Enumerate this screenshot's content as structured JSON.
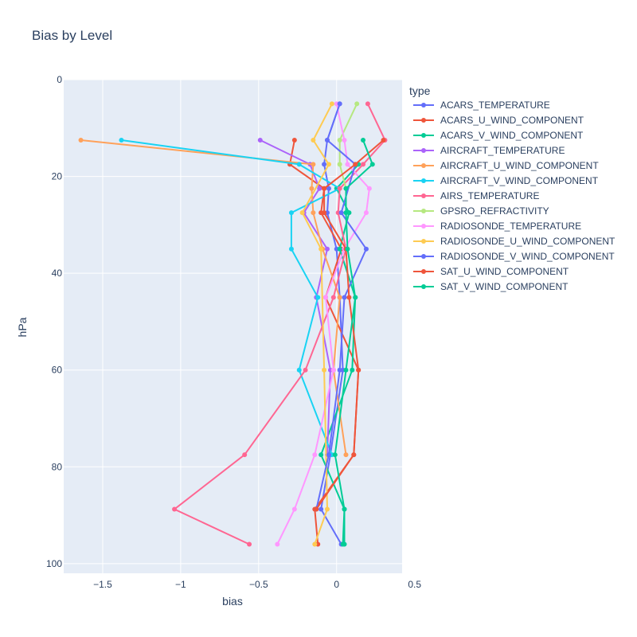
{
  "chart_data": {
    "type": "scatter",
    "mode": "lines+markers",
    "title": "Bias by Level",
    "xlabel": "bias",
    "ylabel": "hPa",
    "xlim": [
      -1.75,
      0.42
    ],
    "ylim": [
      102,
      0
    ],
    "y_reversed": true,
    "grid": true,
    "x_ticks": [
      -1.5,
      -1,
      -0.5,
      0,
      0.5
    ],
    "x_tick_labels": [
      "−1.5",
      "−1",
      "−0.5",
      "0",
      "0.5"
    ],
    "y_ticks": [
      0,
      20,
      40,
      60,
      80,
      100
    ],
    "y_tick_labels": [
      "0",
      "20",
      "40",
      "60",
      "80",
      "100"
    ],
    "legend": {
      "title": "type",
      "placement": "right"
    },
    "series": [
      {
        "name": "ACARS_TEMPERATURE",
        "color": "#636efa",
        "points": [
          [
            0.02,
            5
          ],
          [
            -0.06,
            12.5
          ],
          [
            -0.08,
            17.5
          ],
          [
            -0.05,
            22.5
          ],
          [
            -0.06,
            27.5
          ],
          [
            0.0,
            35
          ],
          [
            0.02,
            45
          ],
          [
            0.04,
            60
          ],
          [
            -0.04,
            77.5
          ],
          [
            -0.1,
            88.75
          ],
          [
            0.03,
            96
          ]
        ]
      },
      {
        "name": "ACARS_U_WIND_COMPONENT",
        "color": "#EF553B",
        "points": [
          [
            -0.27,
            12.5
          ],
          [
            -0.3,
            17.5
          ],
          [
            -0.08,
            22.5
          ],
          [
            -0.1,
            27.5
          ],
          [
            0.03,
            35
          ],
          [
            -0.07,
            45
          ],
          [
            0.14,
            60
          ],
          [
            0.11,
            77.5
          ],
          [
            -0.14,
            88.75
          ],
          [
            -0.12,
            96
          ]
        ]
      },
      {
        "name": "ACARS_V_WIND_COMPONENT",
        "color": "#00cc96",
        "points": [
          [
            0.14,
            17.5
          ],
          [
            0.0,
            22.5
          ],
          [
            0.08,
            27.5
          ],
          [
            0.02,
            35
          ],
          [
            0.12,
            45
          ],
          [
            0.1,
            60
          ],
          [
            -0.1,
            77.5
          ],
          [
            0.05,
            88.75
          ],
          [
            0.04,
            96
          ]
        ]
      },
      {
        "name": "AIRCRAFT_TEMPERATURE",
        "color": "#ab63fa",
        "points": [
          [
            -0.49,
            12.5
          ],
          [
            -0.17,
            17.5
          ],
          [
            -0.11,
            22.5
          ],
          [
            -0.21,
            27.5
          ],
          [
            -0.06,
            35
          ],
          [
            -0.13,
            45
          ],
          [
            -0.04,
            60
          ],
          [
            -0.06,
            77.5
          ]
        ]
      },
      {
        "name": "AIRCRAFT_U_WIND_COMPONENT",
        "color": "#FFA15A",
        "points": [
          [
            -1.64,
            12.5
          ],
          [
            -0.15,
            17.5
          ],
          [
            -0.16,
            22.5
          ],
          [
            -0.15,
            27.5
          ],
          [
            -0.09,
            35
          ],
          [
            0.02,
            45
          ],
          [
            -0.02,
            60
          ],
          [
            0.06,
            77.5
          ]
        ]
      },
      {
        "name": "AIRCRAFT_V_WIND_COMPONENT",
        "color": "#19d3f3",
        "points": [
          [
            -1.38,
            12.5
          ],
          [
            -0.24,
            17.5
          ],
          [
            0.02,
            22.5
          ],
          [
            -0.29,
            27.5
          ],
          [
            -0.29,
            35
          ],
          [
            -0.12,
            45
          ],
          [
            -0.24,
            60
          ],
          [
            -0.03,
            77.5
          ]
        ]
      },
      {
        "name": "AIRS_TEMPERATURE",
        "color": "#FF6692",
        "points": [
          [
            0.2,
            5
          ],
          [
            0.31,
            12.5
          ],
          [
            0.17,
            17.5
          ],
          [
            0.02,
            22.5
          ],
          [
            0.01,
            27.5
          ],
          [
            0.06,
            35
          ],
          [
            -0.02,
            45
          ],
          [
            -0.2,
            60
          ],
          [
            -0.59,
            77.5
          ],
          [
            -1.04,
            88.75
          ],
          [
            -0.56,
            96
          ]
        ]
      },
      {
        "name": "GPSRO_REFRACTIVITY",
        "color": "#B6E880",
        "points": [
          [
            0.13,
            5
          ],
          [
            0.02,
            12.5
          ],
          [
            0.02,
            17.5
          ],
          [
            0.06,
            22.5
          ],
          [
            0.06,
            27.5
          ]
        ]
      },
      {
        "name": "RADIOSONDE_TEMPERATURE",
        "color": "#FF97FF",
        "points": [
          [
            0.0,
            5
          ],
          [
            0.05,
            12.5
          ],
          [
            0.07,
            17.5
          ],
          [
            0.21,
            22.5
          ],
          [
            0.19,
            27.5
          ],
          [
            0.05,
            35
          ],
          [
            -0.07,
            45
          ],
          [
            -0.02,
            60
          ],
          [
            -0.14,
            77.5
          ],
          [
            -0.27,
            88.75
          ],
          [
            -0.38,
            96
          ]
        ]
      },
      {
        "name": "RADIOSONDE_U_WIND_COMPONENT",
        "color": "#FECB52",
        "points": [
          [
            -0.03,
            5
          ],
          [
            -0.15,
            12.5
          ],
          [
            -0.05,
            17.5
          ],
          [
            -0.22,
            27.5
          ],
          [
            -0.1,
            35
          ],
          [
            -0.08,
            60
          ],
          [
            -0.06,
            88.75
          ],
          [
            -0.14,
            96
          ]
        ]
      },
      {
        "name": "RADIOSONDE_V_WIND_COMPONENT",
        "color": "#636efa",
        "points": [
          [
            0.02,
            5
          ],
          [
            -0.06,
            12.5
          ],
          [
            0.12,
            17.5
          ],
          [
            0.03,
            27.5
          ],
          [
            0.19,
            35
          ],
          [
            0.05,
            45
          ],
          [
            0.02,
            60
          ],
          [
            -0.05,
            77.5
          ],
          [
            -0.13,
            88.75
          ]
        ]
      },
      {
        "name": "SAT_U_WIND_COMPONENT",
        "color": "#EF553B",
        "points": [
          [
            0.3,
            12.5
          ],
          [
            0.12,
            17.5
          ],
          [
            -0.08,
            22.5
          ],
          [
            -0.08,
            27.5
          ],
          [
            0.06,
            35
          ],
          [
            0.08,
            45
          ],
          [
            0.14,
            60
          ],
          [
            0.11,
            77.5
          ],
          [
            -0.13,
            88.75
          ]
        ]
      },
      {
        "name": "SAT_V_WIND_COMPONENT",
        "color": "#00cc96",
        "points": [
          [
            0.17,
            12.5
          ],
          [
            0.23,
            17.5
          ],
          [
            0.06,
            22.5
          ],
          [
            0.06,
            27.5
          ],
          [
            0.07,
            35
          ],
          [
            0.12,
            45
          ],
          [
            0.06,
            60
          ],
          [
            -0.01,
            77.5
          ],
          [
            0.05,
            88.75
          ],
          [
            0.05,
            96
          ]
        ]
      }
    ]
  }
}
